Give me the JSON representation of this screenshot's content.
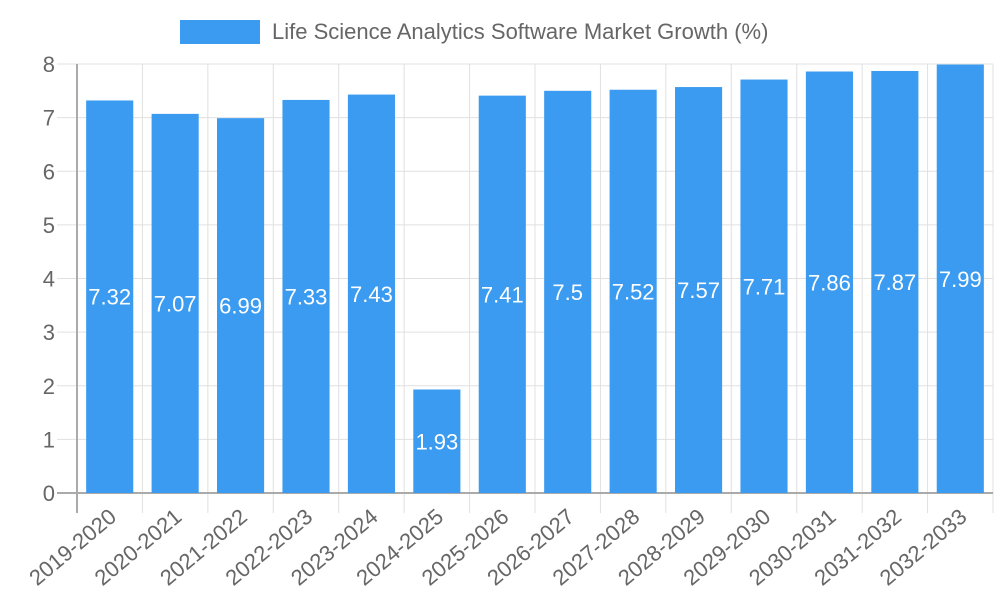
{
  "legend": {
    "label": "Life Science Analytics Software Market Growth (%)",
    "color": "#3a9bf0"
  },
  "chart_data": {
    "type": "bar",
    "title": "",
    "xlabel": "",
    "ylabel": "",
    "ylim": [
      0,
      8
    ],
    "yticks": [
      0,
      1,
      2,
      3,
      4,
      5,
      6,
      7,
      8
    ],
    "grid": true,
    "legend_position": "top",
    "categories": [
      "2019-2020",
      "2020-2021",
      "2021-2022",
      "2022-2023",
      "2023-2024",
      "2024-2025",
      "2025-2026",
      "2026-2027",
      "2027-2028",
      "2028-2029",
      "2029-2030",
      "2030-2031",
      "2031-2032",
      "2032-2033"
    ],
    "series": [
      {
        "name": "Life Science Analytics Software Market Growth (%)",
        "color": "#3a9bf0",
        "values": [
          7.32,
          7.07,
          6.99,
          7.33,
          7.43,
          1.93,
          7.41,
          7.5,
          7.52,
          7.57,
          7.71,
          7.86,
          7.87,
          7.99
        ]
      }
    ]
  }
}
